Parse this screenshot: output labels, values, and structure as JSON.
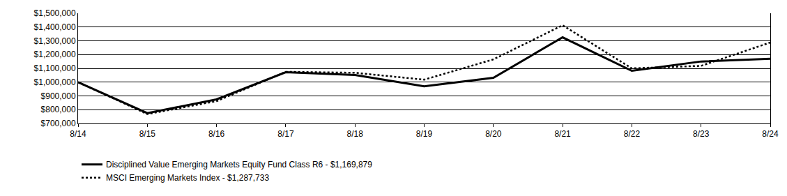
{
  "chart_data": {
    "type": "line",
    "categories": [
      "8/14",
      "8/15",
      "8/16",
      "8/17",
      "8/18",
      "8/19",
      "8/20",
      "8/21",
      "8/22",
      "8/23",
      "8/24"
    ],
    "series": [
      {
        "name": "Disciplined Value Emerging Markets Equity Fund Class R6 - $1,169,879",
        "color": "#000000",
        "line_style": "solid",
        "values": [
          1000000,
          775000,
          875000,
          1072000,
          1052000,
          970000,
          1032000,
          1325000,
          1082000,
          1150000,
          1169879
        ]
      },
      {
        "name": "MSCI Emerging Markets Index - $1,287,733",
        "color": "#000000",
        "line_style": "dot",
        "values": [
          1000000,
          768000,
          862000,
          1075000,
          1068000,
          1018000,
          1165000,
          1413000,
          1100000,
          1118000,
          1287733
        ]
      }
    ],
    "ylim": [
      700000,
      1500000
    ],
    "yticks": [
      {
        "value": 700000,
        "label": "$700,000"
      },
      {
        "value": 800000,
        "label": "$800,000"
      },
      {
        "value": 900000,
        "label": "$900,000"
      },
      {
        "value": 1000000,
        "label": "$1,000,000"
      },
      {
        "value": 1100000,
        "label": "$1,100,000"
      },
      {
        "value": 1200000,
        "label": "$1,200,000"
      },
      {
        "value": 1300000,
        "label": "$1,300,000"
      },
      {
        "value": 1400000,
        "label": "$1,400,000"
      },
      {
        "value": 1500000,
        "label": "$1,500,000"
      }
    ],
    "grid": true,
    "legend": "bottom"
  }
}
